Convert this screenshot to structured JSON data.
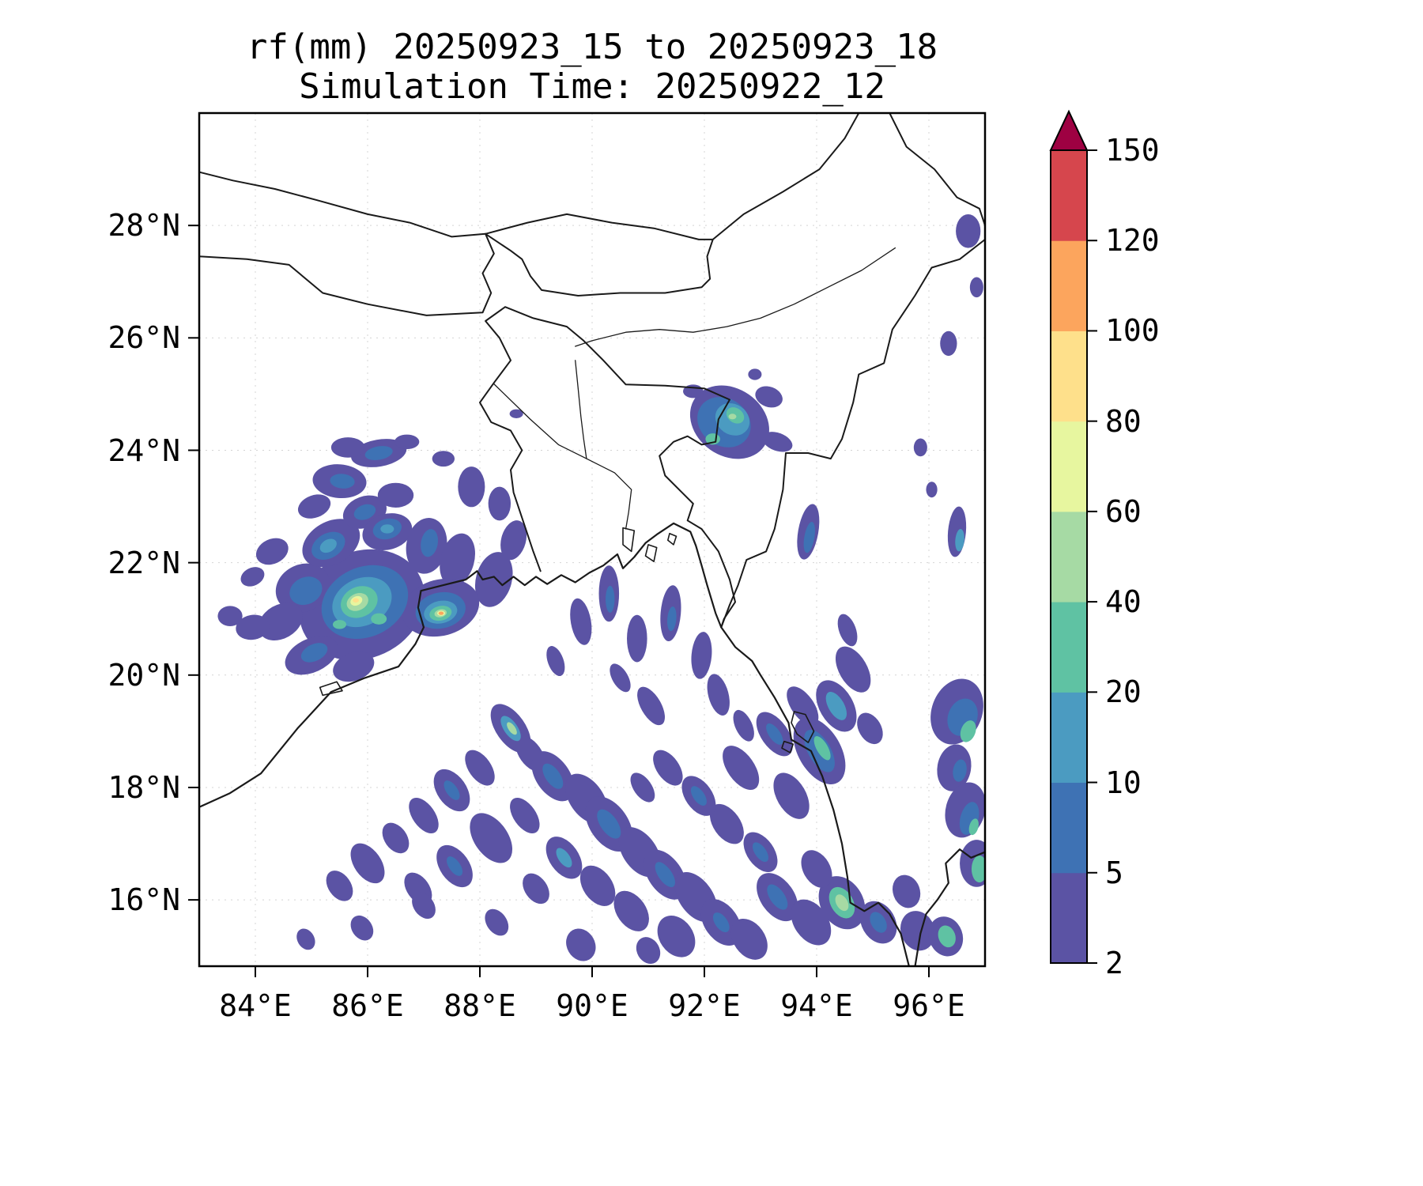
{
  "chart_data": {
    "type": "heatmap",
    "subtype": "filled-contour-precipitation-map",
    "title": "rf(mm) 20250923_15 to 20250923_18",
    "subtitle": "Simulation Time: 20250922_12",
    "variable": "rainfall",
    "units": "mm",
    "lon_range": [
      83,
      97
    ],
    "lat_range": [
      14.8,
      30.0
    ],
    "grid": true,
    "x_tick_labels": [
      "84°E",
      "86°E",
      "88°E",
      "90°E",
      "92°E",
      "94°E",
      "96°E"
    ],
    "y_tick_labels": [
      "16°N",
      "18°N",
      "20°N",
      "22°N",
      "24°N",
      "26°N",
      "28°N"
    ],
    "x_tick_lons": [
      84,
      86,
      88,
      90,
      92,
      94,
      96
    ],
    "y_tick_lats": [
      16,
      18,
      20,
      22,
      24,
      26,
      28
    ],
    "colorbar": {
      "position": "right",
      "levels": [
        2,
        5,
        10,
        20,
        40,
        60,
        80,
        100,
        120,
        150
      ],
      "tick_labels": [
        "2",
        "5",
        "10",
        "20",
        "40",
        "60",
        "80",
        "100",
        "120",
        "150"
      ],
      "segment_colors": [
        "#5b53a4",
        "#3e72b4",
        "#4b9bc1",
        "#5fc2a3",
        "#a6daa4",
        "#e7f69f",
        "#fee08b",
        "#fca55d",
        "#d6464d"
      ],
      "extend_color": "#9e0142"
    },
    "rain_cells": [
      [
        85.9,
        21.25,
        1.15,
        0.95,
        -25,
        2
      ],
      [
        84.85,
        21.55,
        0.5,
        0.42,
        -25,
        2
      ],
      [
        84.45,
        20.95,
        0.42,
        0.3,
        -30,
        2
      ],
      [
        85.0,
        20.35,
        0.5,
        0.3,
        -25,
        2
      ],
      [
        85.75,
        20.15,
        0.38,
        0.25,
        -20,
        2
      ],
      [
        83.95,
        20.85,
        0.3,
        0.22,
        -10,
        2
      ],
      [
        83.55,
        21.05,
        0.22,
        0.18,
        0,
        2
      ],
      [
        84.3,
        22.2,
        0.3,
        0.22,
        -25,
        2
      ],
      [
        83.95,
        21.75,
        0.22,
        0.16,
        -25,
        2
      ],
      [
        85.35,
        22.35,
        0.55,
        0.38,
        -30,
        2
      ],
      [
        85.95,
        22.9,
        0.4,
        0.28,
        -20,
        2
      ],
      [
        85.5,
        23.45,
        0.48,
        0.3,
        5,
        2
      ],
      [
        86.5,
        23.2,
        0.32,
        0.22,
        0,
        2
      ],
      [
        86.35,
        22.55,
        0.45,
        0.32,
        -15,
        2
      ],
      [
        87.05,
        22.3,
        0.36,
        0.5,
        10,
        2
      ],
      [
        87.6,
        22.05,
        0.3,
        0.48,
        15,
        2
      ],
      [
        88.25,
        21.7,
        0.32,
        0.5,
        15,
        2
      ],
      [
        88.6,
        22.4,
        0.22,
        0.36,
        15,
        2
      ],
      [
        88.35,
        23.05,
        0.2,
        0.3,
        0,
        2
      ],
      [
        87.85,
        23.35,
        0.24,
        0.36,
        0,
        2
      ],
      [
        87.35,
        23.85,
        0.2,
        0.14,
        0,
        2
      ],
      [
        86.2,
        23.95,
        0.5,
        0.24,
        -10,
        2
      ],
      [
        85.65,
        24.05,
        0.3,
        0.18,
        0,
        2
      ],
      [
        86.7,
        24.15,
        0.22,
        0.13,
        0,
        2
      ],
      [
        85.05,
        23.0,
        0.3,
        0.2,
        -20,
        2
      ],
      [
        87.3,
        21.2,
        0.7,
        0.5,
        -15,
        2
      ],
      [
        88.65,
        24.65,
        0.12,
        0.08,
        0,
        2
      ],
      [
        85.95,
        21.3,
        0.8,
        0.62,
        -25,
        5
      ],
      [
        85.3,
        22.3,
        0.32,
        0.22,
        -30,
        5
      ],
      [
        86.35,
        22.6,
        0.26,
        0.18,
        -15,
        5
      ],
      [
        84.9,
        21.5,
        0.3,
        0.24,
        -25,
        5
      ],
      [
        85.05,
        20.4,
        0.25,
        0.15,
        -25,
        5
      ],
      [
        87.3,
        21.15,
        0.45,
        0.32,
        -12,
        5
      ],
      [
        85.95,
        22.9,
        0.2,
        0.13,
        -20,
        5
      ],
      [
        85.55,
        23.45,
        0.22,
        0.13,
        5,
        5
      ],
      [
        86.2,
        23.95,
        0.25,
        0.12,
        -10,
        5
      ],
      [
        87.1,
        22.35,
        0.15,
        0.25,
        10,
        5
      ],
      [
        85.9,
        21.3,
        0.55,
        0.42,
        -25,
        10
      ],
      [
        87.3,
        21.12,
        0.3,
        0.2,
        -12,
        10
      ],
      [
        85.3,
        22.3,
        0.16,
        0.11,
        -30,
        10
      ],
      [
        86.35,
        22.6,
        0.12,
        0.08,
        0,
        10
      ],
      [
        85.85,
        21.3,
        0.34,
        0.27,
        -25,
        20
      ],
      [
        86.2,
        21.0,
        0.14,
        0.1,
        0,
        20
      ],
      [
        87.3,
        21.1,
        0.2,
        0.13,
        -12,
        20
      ],
      [
        85.5,
        20.9,
        0.12,
        0.08,
        0,
        20
      ],
      [
        85.82,
        21.3,
        0.2,
        0.15,
        -25,
        40
      ],
      [
        87.3,
        21.1,
        0.11,
        0.07,
        -12,
        40
      ],
      [
        85.8,
        21.32,
        0.11,
        0.08,
        -25,
        60
      ],
      [
        87.31,
        21.1,
        0.07,
        0.045,
        0,
        60
      ],
      [
        85.79,
        21.33,
        0.055,
        0.04,
        0,
        80
      ],
      [
        87.31,
        21.1,
        0.045,
        0.03,
        0,
        100
      ],
      [
        92.45,
        24.5,
        0.75,
        0.6,
        35,
        2
      ],
      [
        93.15,
        24.95,
        0.25,
        0.18,
        20,
        2
      ],
      [
        93.3,
        24.15,
        0.28,
        0.16,
        20,
        2
      ],
      [
        91.8,
        25.05,
        0.18,
        0.12,
        0,
        2
      ],
      [
        92.9,
        25.35,
        0.12,
        0.1,
        0,
        2
      ],
      [
        92.35,
        24.5,
        0.5,
        0.42,
        35,
        5
      ],
      [
        92.5,
        24.55,
        0.32,
        0.27,
        35,
        10
      ],
      [
        92.55,
        24.62,
        0.17,
        0.13,
        35,
        20
      ],
      [
        92.15,
        24.2,
        0.13,
        0.1,
        0,
        20
      ],
      [
        92.5,
        24.6,
        0.07,
        0.05,
        0,
        40
      ],
      [
        96.7,
        27.9,
        0.22,
        0.3,
        0,
        2
      ],
      [
        96.85,
        26.9,
        0.12,
        0.18,
        0,
        2
      ],
      [
        96.35,
        25.9,
        0.15,
        0.22,
        0,
        2
      ],
      [
        95.85,
        24.05,
        0.12,
        0.16,
        0,
        2
      ],
      [
        96.05,
        23.3,
        0.1,
        0.14,
        0,
        2
      ],
      [
        96.5,
        22.55,
        0.16,
        0.45,
        5,
        2
      ],
      [
        96.55,
        22.4,
        0.08,
        0.2,
        5,
        10
      ],
      [
        93.85,
        22.55,
        0.18,
        0.5,
        10,
        2
      ],
      [
        93.87,
        22.45,
        0.09,
        0.28,
        10,
        5
      ],
      [
        96.5,
        19.35,
        0.45,
        0.6,
        20,
        2
      ],
      [
        96.6,
        19.25,
        0.26,
        0.34,
        20,
        5
      ],
      [
        96.7,
        19.0,
        0.13,
        0.2,
        20,
        20
      ],
      [
        96.45,
        18.35,
        0.3,
        0.42,
        10,
        2
      ],
      [
        96.55,
        18.3,
        0.12,
        0.2,
        10,
        5
      ],
      [
        96.65,
        17.6,
        0.35,
        0.5,
        15,
        2
      ],
      [
        96.72,
        17.45,
        0.16,
        0.3,
        15,
        5
      ],
      [
        96.8,
        17.3,
        0.08,
        0.15,
        15,
        20
      ],
      [
        96.85,
        16.65,
        0.3,
        0.42,
        0,
        2
      ],
      [
        96.9,
        16.55,
        0.14,
        0.24,
        0,
        20
      ],
      [
        94.05,
        18.65,
        0.38,
        0.65,
        -30,
        2
      ],
      [
        94.05,
        18.65,
        0.2,
        0.42,
        -30,
        5
      ],
      [
        94.1,
        18.7,
        0.1,
        0.24,
        -30,
        20
      ],
      [
        94.35,
        19.45,
        0.3,
        0.5,
        -30,
        2
      ],
      [
        94.35,
        19.45,
        0.14,
        0.28,
        -30,
        10
      ],
      [
        94.65,
        20.1,
        0.25,
        0.45,
        -30,
        2
      ],
      [
        93.55,
        17.85,
        0.26,
        0.45,
        -30,
        2
      ],
      [
        94.95,
        19.05,
        0.2,
        0.3,
        -30,
        2
      ],
      [
        94.55,
        20.8,
        0.15,
        0.3,
        -20,
        2
      ],
      [
        89.8,
        20.95,
        0.18,
        0.42,
        -10,
        2
      ],
      [
        90.3,
        21.45,
        0.18,
        0.5,
        0,
        2
      ],
      [
        90.32,
        21.35,
        0.08,
        0.24,
        0,
        5
      ],
      [
        90.8,
        20.65,
        0.18,
        0.42,
        0,
        2
      ],
      [
        91.4,
        21.1,
        0.18,
        0.5,
        5,
        2
      ],
      [
        91.42,
        21.0,
        0.08,
        0.22,
        5,
        5
      ],
      [
        91.95,
        20.35,
        0.18,
        0.42,
        5,
        2
      ],
      [
        92.25,
        19.65,
        0.18,
        0.38,
        -15,
        2
      ],
      [
        91.05,
        19.45,
        0.18,
        0.38,
        -30,
        2
      ],
      [
        90.5,
        19.95,
        0.14,
        0.28,
        -30,
        2
      ],
      [
        89.35,
        20.25,
        0.14,
        0.28,
        -20,
        2
      ],
      [
        92.7,
        19.1,
        0.15,
        0.3,
        -25,
        2
      ],
      [
        88.55,
        19.05,
        0.26,
        0.5,
        -35,
        2
      ],
      [
        88.55,
        19.05,
        0.12,
        0.26,
        -35,
        10
      ],
      [
        88.57,
        19.05,
        0.06,
        0.13,
        -35,
        40
      ],
      [
        88.9,
        18.6,
        0.2,
        0.36,
        -35,
        2
      ],
      [
        89.3,
        18.2,
        0.3,
        0.5,
        -35,
        2
      ],
      [
        89.3,
        18.2,
        0.13,
        0.26,
        -35,
        5
      ],
      [
        89.9,
        17.8,
        0.3,
        0.5,
        -35,
        2
      ],
      [
        90.3,
        17.35,
        0.34,
        0.55,
        -35,
        2
      ],
      [
        90.3,
        17.35,
        0.15,
        0.3,
        -35,
        5
      ],
      [
        90.85,
        16.85,
        0.3,
        0.5,
        -35,
        2
      ],
      [
        91.3,
        16.45,
        0.3,
        0.5,
        -35,
        2
      ],
      [
        91.3,
        16.45,
        0.12,
        0.26,
        -35,
        5
      ],
      [
        91.85,
        16.05,
        0.3,
        0.5,
        -35,
        2
      ],
      [
        92.3,
        15.6,
        0.3,
        0.46,
        -35,
        2
      ],
      [
        92.3,
        15.6,
        0.11,
        0.2,
        -35,
        5
      ],
      [
        92.8,
        15.3,
        0.28,
        0.4,
        -35,
        2
      ],
      [
        88.0,
        18.35,
        0.2,
        0.36,
        -35,
        2
      ],
      [
        87.5,
        17.95,
        0.26,
        0.42,
        -35,
        2
      ],
      [
        87.5,
        17.95,
        0.1,
        0.2,
        -35,
        5
      ],
      [
        87.0,
        17.5,
        0.2,
        0.36,
        -35,
        2
      ],
      [
        86.5,
        17.1,
        0.2,
        0.3,
        -35,
        2
      ],
      [
        86.0,
        16.65,
        0.24,
        0.4,
        -35,
        2
      ],
      [
        85.5,
        16.25,
        0.2,
        0.3,
        -35,
        2
      ],
      [
        86.9,
        16.2,
        0.2,
        0.32,
        -35,
        2
      ],
      [
        87.55,
        16.6,
        0.26,
        0.42,
        -35,
        2
      ],
      [
        87.55,
        16.6,
        0.1,
        0.2,
        -35,
        5
      ],
      [
        88.2,
        17.1,
        0.3,
        0.5,
        -35,
        2
      ],
      [
        88.8,
        17.5,
        0.2,
        0.36,
        -35,
        2
      ],
      [
        89.5,
        16.75,
        0.26,
        0.42,
        -35,
        2
      ],
      [
        89.5,
        16.75,
        0.1,
        0.2,
        -35,
        10
      ],
      [
        90.1,
        16.25,
        0.26,
        0.4,
        -35,
        2
      ],
      [
        90.7,
        15.8,
        0.26,
        0.4,
        -35,
        2
      ],
      [
        91.5,
        15.35,
        0.3,
        0.4,
        -35,
        2
      ],
      [
        93.3,
        16.05,
        0.3,
        0.48,
        -35,
        2
      ],
      [
        93.3,
        16.05,
        0.13,
        0.26,
        -35,
        5
      ],
      [
        93.9,
        15.6,
        0.3,
        0.45,
        -35,
        2
      ],
      [
        94.45,
        15.95,
        0.38,
        0.5,
        -30,
        2
      ],
      [
        94.45,
        15.95,
        0.2,
        0.3,
        -30,
        20
      ],
      [
        94.45,
        15.95,
        0.1,
        0.16,
        -30,
        40
      ],
      [
        95.1,
        15.6,
        0.3,
        0.4,
        -30,
        2
      ],
      [
        95.1,
        15.6,
        0.13,
        0.2,
        -30,
        5
      ],
      [
        95.8,
        15.45,
        0.3,
        0.36,
        -20,
        2
      ],
      [
        96.3,
        15.35,
        0.3,
        0.36,
        -20,
        2
      ],
      [
        96.32,
        15.35,
        0.15,
        0.2,
        -20,
        20
      ],
      [
        95.6,
        16.15,
        0.24,
        0.3,
        -20,
        2
      ],
      [
        94.0,
        16.55,
        0.24,
        0.36,
        -30,
        2
      ],
      [
        93.0,
        16.85,
        0.24,
        0.4,
        -35,
        2
      ],
      [
        93.0,
        16.85,
        0.1,
        0.2,
        -35,
        5
      ],
      [
        92.4,
        17.35,
        0.24,
        0.4,
        -35,
        2
      ],
      [
        91.9,
        17.85,
        0.24,
        0.4,
        -35,
        2
      ],
      [
        91.9,
        17.85,
        0.1,
        0.2,
        -35,
        5
      ],
      [
        91.35,
        18.35,
        0.2,
        0.36,
        -35,
        2
      ],
      [
        92.65,
        18.35,
        0.24,
        0.45,
        -35,
        2
      ],
      [
        93.25,
        18.95,
        0.24,
        0.45,
        -35,
        2
      ],
      [
        93.25,
        18.95,
        0.1,
        0.22,
        -35,
        5
      ],
      [
        93.75,
        19.45,
        0.2,
        0.4,
        -35,
        2
      ],
      [
        90.9,
        18.0,
        0.16,
        0.3,
        -35,
        2
      ],
      [
        89.0,
        16.2,
        0.2,
        0.3,
        -35,
        2
      ],
      [
        88.3,
        15.6,
        0.18,
        0.26,
        -35,
        2
      ],
      [
        85.9,
        15.5,
        0.18,
        0.24,
        -35,
        2
      ],
      [
        84.9,
        15.3,
        0.15,
        0.2,
        -30,
        2
      ],
      [
        89.8,
        15.2,
        0.25,
        0.3,
        -30,
        2
      ],
      [
        91.0,
        15.1,
        0.2,
        0.25,
        -30,
        2
      ],
      [
        87.0,
        15.9,
        0.18,
        0.26,
        -35,
        2
      ]
    ]
  }
}
